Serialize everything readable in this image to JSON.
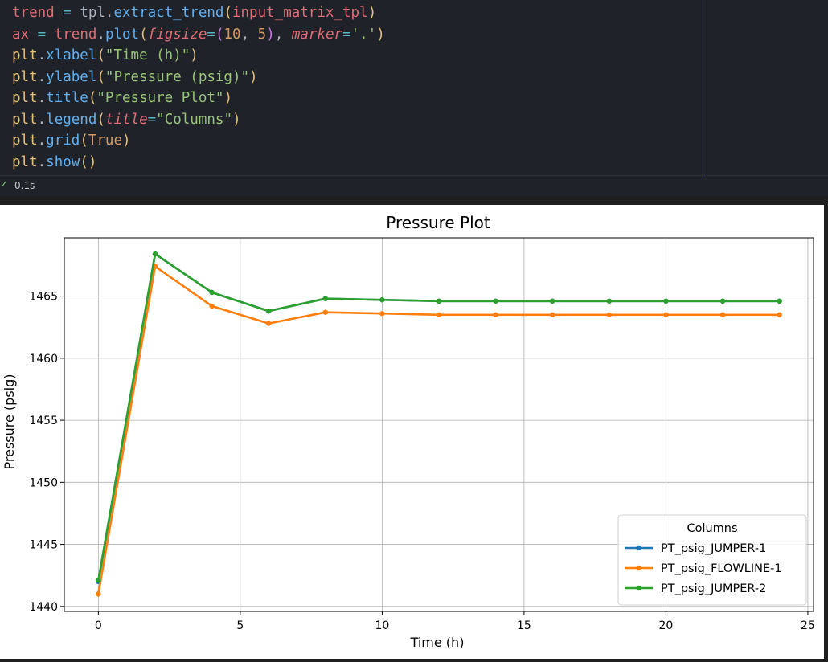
{
  "code": {
    "lines": [
      [
        [
          "tk-var",
          "trend"
        ],
        [
          "tk-pun",
          " "
        ],
        [
          "tk-op",
          "="
        ],
        [
          "tk-pun",
          " tpl."
        ],
        [
          "tk-fn",
          "extract_trend"
        ],
        [
          "tk-br1",
          "("
        ],
        [
          "tk-var",
          "input_matrix_tpl"
        ],
        [
          "tk-br1",
          ")"
        ]
      ],
      [
        [
          "tk-var",
          "ax"
        ],
        [
          "tk-pun",
          " "
        ],
        [
          "tk-op",
          "="
        ],
        [
          "tk-pun",
          " "
        ],
        [
          "tk-var",
          "trend"
        ],
        [
          "tk-pun",
          "."
        ],
        [
          "tk-fn",
          "plot"
        ],
        [
          "tk-br1",
          "("
        ],
        [
          "tk-kw",
          "figsize"
        ],
        [
          "tk-op",
          "="
        ],
        [
          "tk-br2",
          "("
        ],
        [
          "tk-num",
          "10"
        ],
        [
          "tk-pun",
          ", "
        ],
        [
          "tk-num",
          "5"
        ],
        [
          "tk-br2",
          ")"
        ],
        [
          "tk-pun",
          ", "
        ],
        [
          "tk-kw",
          "marker"
        ],
        [
          "tk-op",
          "="
        ],
        [
          "tk-str",
          "'.'"
        ],
        [
          "tk-br1",
          ")"
        ]
      ],
      [
        [
          "tk-mod",
          "plt"
        ],
        [
          "tk-pun",
          "."
        ],
        [
          "tk-fn",
          "xlabel"
        ],
        [
          "tk-br1",
          "("
        ],
        [
          "tk-str",
          "\"Time (h)\""
        ],
        [
          "tk-br1",
          ")"
        ]
      ],
      [
        [
          "tk-mod",
          "plt"
        ],
        [
          "tk-pun",
          "."
        ],
        [
          "tk-fn",
          "ylabel"
        ],
        [
          "tk-br1",
          "("
        ],
        [
          "tk-str",
          "\"Pressure (psig)\""
        ],
        [
          "tk-br1",
          ")"
        ]
      ],
      [
        [
          "tk-mod",
          "plt"
        ],
        [
          "tk-pun",
          "."
        ],
        [
          "tk-fn",
          "title"
        ],
        [
          "tk-br1",
          "("
        ],
        [
          "tk-str",
          "\"Pressure Plot\""
        ],
        [
          "tk-br1",
          ")"
        ]
      ],
      [
        [
          "tk-mod",
          "plt"
        ],
        [
          "tk-pun",
          "."
        ],
        [
          "tk-fn",
          "legend"
        ],
        [
          "tk-br1",
          "("
        ],
        [
          "tk-kw",
          "title"
        ],
        [
          "tk-op",
          "="
        ],
        [
          "tk-str",
          "\"Columns\""
        ],
        [
          "tk-br1",
          ")"
        ]
      ],
      [
        [
          "tk-mod",
          "plt"
        ],
        [
          "tk-pun",
          "."
        ],
        [
          "tk-fn",
          "grid"
        ],
        [
          "tk-br1",
          "("
        ],
        [
          "tk-const",
          "True"
        ],
        [
          "tk-br1",
          ")"
        ]
      ],
      [
        [
          "tk-mod",
          "plt"
        ],
        [
          "tk-pun",
          "."
        ],
        [
          "tk-fn",
          "show"
        ],
        [
          "tk-br1",
          "()"
        ]
      ]
    ]
  },
  "status": {
    "check_icon": "check-icon",
    "exec_time": "0.1s"
  },
  "chart_data": {
    "type": "line",
    "title": "Pressure Plot",
    "xlabel": "Time (h)",
    "ylabel": "Pressure (psig)",
    "xlim": [
      -1.2,
      25.2
    ],
    "ylim": [
      1439.6,
      1469.7
    ],
    "xticks": [
      0,
      5,
      10,
      15,
      20,
      25
    ],
    "yticks": [
      1440,
      1445,
      1450,
      1455,
      1460,
      1465
    ],
    "grid": true,
    "marker": ".",
    "legend": {
      "title": "Columns",
      "position": "lower right"
    },
    "x": [
      0,
      2,
      4,
      6,
      8,
      10,
      12,
      14,
      16,
      18,
      20,
      22,
      24
    ],
    "series": [
      {
        "name": "PT_psig_JUMPER-1",
        "color": "#1f77b4",
        "values": [
          1442.0,
          1468.4,
          1465.3,
          1463.8,
          1464.8,
          1464.7,
          1464.6,
          1464.6,
          1464.6,
          1464.6,
          1464.6,
          1464.6,
          1464.6
        ]
      },
      {
        "name": "PT_psig_FLOWLINE-1",
        "color": "#ff7f0e",
        "values": [
          1441.0,
          1467.4,
          1464.2,
          1462.8,
          1463.7,
          1463.6,
          1463.5,
          1463.5,
          1463.5,
          1463.5,
          1463.5,
          1463.5,
          1463.5
        ]
      },
      {
        "name": "PT_psig_JUMPER-2",
        "color": "#2ca02c",
        "values": [
          1442.1,
          1468.4,
          1465.3,
          1463.8,
          1464.8,
          1464.7,
          1464.6,
          1464.6,
          1464.6,
          1464.6,
          1464.6,
          1464.6,
          1464.6
        ]
      }
    ]
  }
}
